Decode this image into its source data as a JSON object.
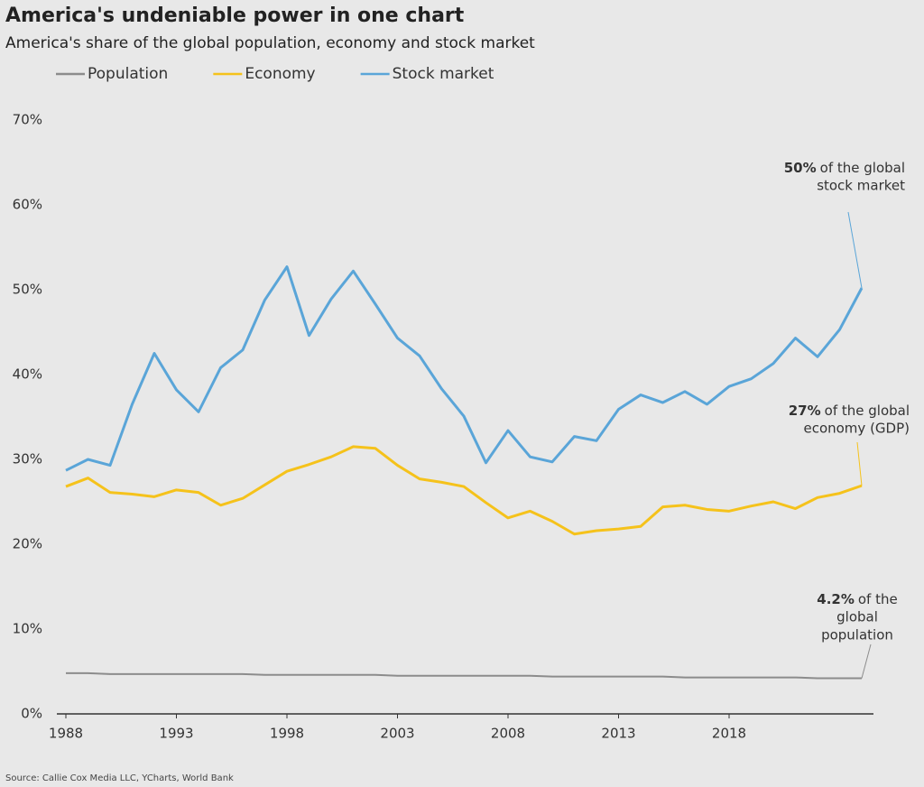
{
  "chart_data": {
    "type": "line",
    "title": "America's undeniable power in one chart",
    "subtitle": "America's share of the global population, economy and stock market",
    "source": "Source: Callie Cox Media LLC, YCharts, World Bank",
    "x": [
      1988,
      1989,
      1990,
      1991,
      1992,
      1993,
      1994,
      1995,
      1996,
      1997,
      1998,
      1999,
      2000,
      2001,
      2002,
      2003,
      2004,
      2005,
      2006,
      2007,
      2008,
      2009,
      2010,
      2011,
      2012,
      2013,
      2014,
      2015,
      2016,
      2017,
      2018,
      2019,
      2020,
      2021,
      2022,
      2023,
      2024
    ],
    "series": [
      {
        "name": "Population",
        "color": "#8c8c8c",
        "values": [
          4.8,
          4.8,
          4.7,
          4.7,
          4.7,
          4.7,
          4.7,
          4.7,
          4.7,
          4.6,
          4.6,
          4.6,
          4.6,
          4.6,
          4.6,
          4.5,
          4.5,
          4.5,
          4.5,
          4.5,
          4.5,
          4.5,
          4.4,
          4.4,
          4.4,
          4.4,
          4.4,
          4.4,
          4.3,
          4.3,
          4.3,
          4.3,
          4.3,
          4.3,
          4.2,
          4.2,
          4.2
        ]
      },
      {
        "name": "Economy",
        "color": "#f5c21b",
        "values": [
          26.8,
          27.8,
          26.1,
          25.9,
          25.6,
          26.4,
          26.1,
          24.6,
          25.4,
          27.0,
          28.6,
          29.4,
          30.3,
          31.5,
          31.3,
          29.3,
          27.7,
          27.3,
          26.8,
          24.9,
          23.1,
          23.9,
          22.7,
          21.2,
          21.6,
          21.8,
          22.1,
          24.4,
          24.6,
          24.1,
          23.9,
          24.5,
          25.0,
          24.2,
          25.5,
          26.0,
          26.9
        ]
      },
      {
        "name": "Stock market",
        "color": "#5aa5d8",
        "values": [
          28.7,
          30.0,
          29.3,
          36.5,
          42.5,
          38.2,
          35.6,
          40.8,
          42.9,
          48.8,
          52.7,
          44.6,
          48.9,
          52.2,
          48.3,
          44.3,
          42.2,
          38.3,
          35.1,
          29.6,
          33.4,
          30.3,
          29.7,
          32.7,
          32.2,
          35.9,
          37.6,
          36.7,
          38.0,
          36.5,
          38.6,
          39.5,
          41.3,
          44.3,
          42.1,
          45.3,
          50.2
        ]
      }
    ],
    "xlim": [
      1988,
      2024
    ],
    "xticks": [
      1988,
      1993,
      1998,
      2003,
      2008,
      2013,
      2018
    ],
    "ylim": [
      0,
      70
    ],
    "yticks": [
      {
        "value": 0,
        "label": "0%"
      },
      {
        "value": 10,
        "label": "10%"
      },
      {
        "value": 20,
        "label": "20%"
      },
      {
        "value": 30,
        "label": "30%"
      },
      {
        "value": 40,
        "label": "40%"
      },
      {
        "value": 50,
        "label": "50%"
      },
      {
        "value": 60,
        "label": "60%"
      },
      {
        "value": 70,
        "label": "70%"
      }
    ],
    "annotations": [
      {
        "series": 2,
        "bold": "50%",
        "lines": [
          "of the global",
          "stock market"
        ]
      },
      {
        "series": 1,
        "bold": "27%",
        "lines": [
          "of the global",
          "economy (GDP)"
        ]
      },
      {
        "series": 0,
        "bold": "4.2%",
        "lines": [
          "of the",
          "global",
          "population"
        ]
      }
    ]
  }
}
